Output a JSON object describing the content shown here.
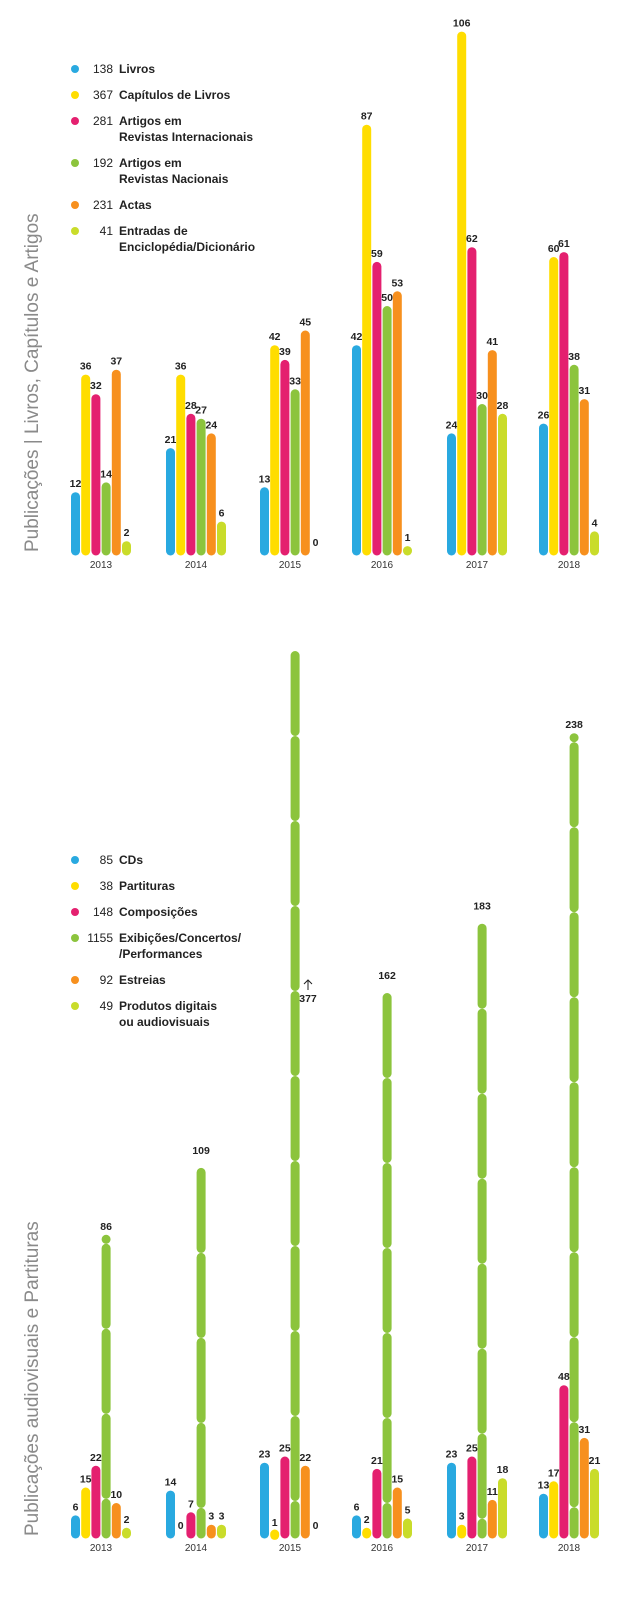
{
  "chart_data": [
    {
      "type": "bar",
      "title": "Publicações | Livros, Capítulos e Artigos",
      "categories": [
        "2013",
        "2014",
        "2015",
        "2016",
        "2017",
        "2018"
      ],
      "series": [
        {
          "name": "Livros",
          "total": "138",
          "color": "#29a9e0",
          "values": [
            12,
            21,
            13,
            42,
            24,
            26
          ]
        },
        {
          "name": "Capítulos de Livros",
          "total": "367",
          "color": "#ffdd00",
          "values": [
            36,
            36,
            42,
            87,
            106,
            60
          ]
        },
        {
          "name": "Artigos em Revistas Internacionais",
          "total": "281",
          "color": "#e4206f",
          "values": [
            32,
            28,
            39,
            59,
            62,
            61
          ]
        },
        {
          "name": "Artigos em Revistas Nacionais",
          "total": "192",
          "color": "#8cc43d",
          "values": [
            14,
            27,
            33,
            50,
            30,
            38
          ]
        },
        {
          "name": "Actas",
          "total": "231",
          "color": "#f7901e",
          "values": [
            37,
            24,
            45,
            53,
            41,
            31
          ]
        },
        {
          "name": "Entradas de Enciclopédia/Dicionário",
          "total": "41",
          "color": "#c9dc2a",
          "values": [
            2,
            6,
            0,
            1,
            28,
            4
          ]
        }
      ],
      "legend": [
        {
          "value": "138",
          "lines": [
            "Livros"
          ]
        },
        {
          "value": "367",
          "lines": [
            "Capítulos de Livros"
          ]
        },
        {
          "value": "281",
          "lines": [
            "Artigos em",
            "Revistas Internacionais"
          ]
        },
        {
          "value": "192",
          "lines": [
            "Artigos em",
            "Revistas Nacionais"
          ]
        },
        {
          "value": "231",
          "lines": [
            "Actas"
          ]
        },
        {
          "value": "41",
          "lines": [
            "Entradas de",
            "Enciclopédia/Dicionário"
          ]
        }
      ]
    },
    {
      "type": "bar",
      "title": "Publicações audiovisuais e Partituras",
      "categories": [
        "2013",
        "2014",
        "2015",
        "2016",
        "2017",
        "2018"
      ],
      "series": [
        {
          "name": "CDs",
          "total": "85",
          "color": "#29a9e0",
          "values": [
            6,
            14,
            23,
            6,
            23,
            13
          ]
        },
        {
          "name": "Partituras",
          "total": "38",
          "color": "#ffdd00",
          "values": [
            15,
            0,
            1,
            2,
            3,
            17
          ]
        },
        {
          "name": "Composições",
          "total": "148",
          "color": "#e4206f",
          "values": [
            22,
            7,
            25,
            21,
            25,
            48
          ]
        },
        {
          "name": "Exibições/Concertos/Performances",
          "total": "1155",
          "color": "#8cc43d",
          "values": [
            86,
            109,
            377,
            162,
            183,
            238
          ]
        },
        {
          "name": "Estreias",
          "total": "92",
          "color": "#f7901e",
          "values": [
            10,
            3,
            22,
            15,
            11,
            31
          ]
        },
        {
          "name": "Produtos digitais ou audiovisuais",
          "total": "49",
          "color": "#c9dc2a",
          "values": [
            2,
            3,
            0,
            5,
            18,
            21
          ]
        }
      ],
      "legend": [
        {
          "value": "85",
          "lines": [
            "CDs"
          ]
        },
        {
          "value": "38",
          "lines": [
            "Partituras"
          ]
        },
        {
          "value": "148",
          "lines": [
            "Composições"
          ]
        },
        {
          "value": "1155",
          "lines": [
            "Exibições/Concertos/",
            "/Performances"
          ]
        },
        {
          "value": "92",
          "lines": [
            "Estreias"
          ]
        },
        {
          "value": "49",
          "lines": [
            "Produtos digitais",
            "ou audiovisuais"
          ]
        }
      ],
      "annotation": "377"
    }
  ]
}
